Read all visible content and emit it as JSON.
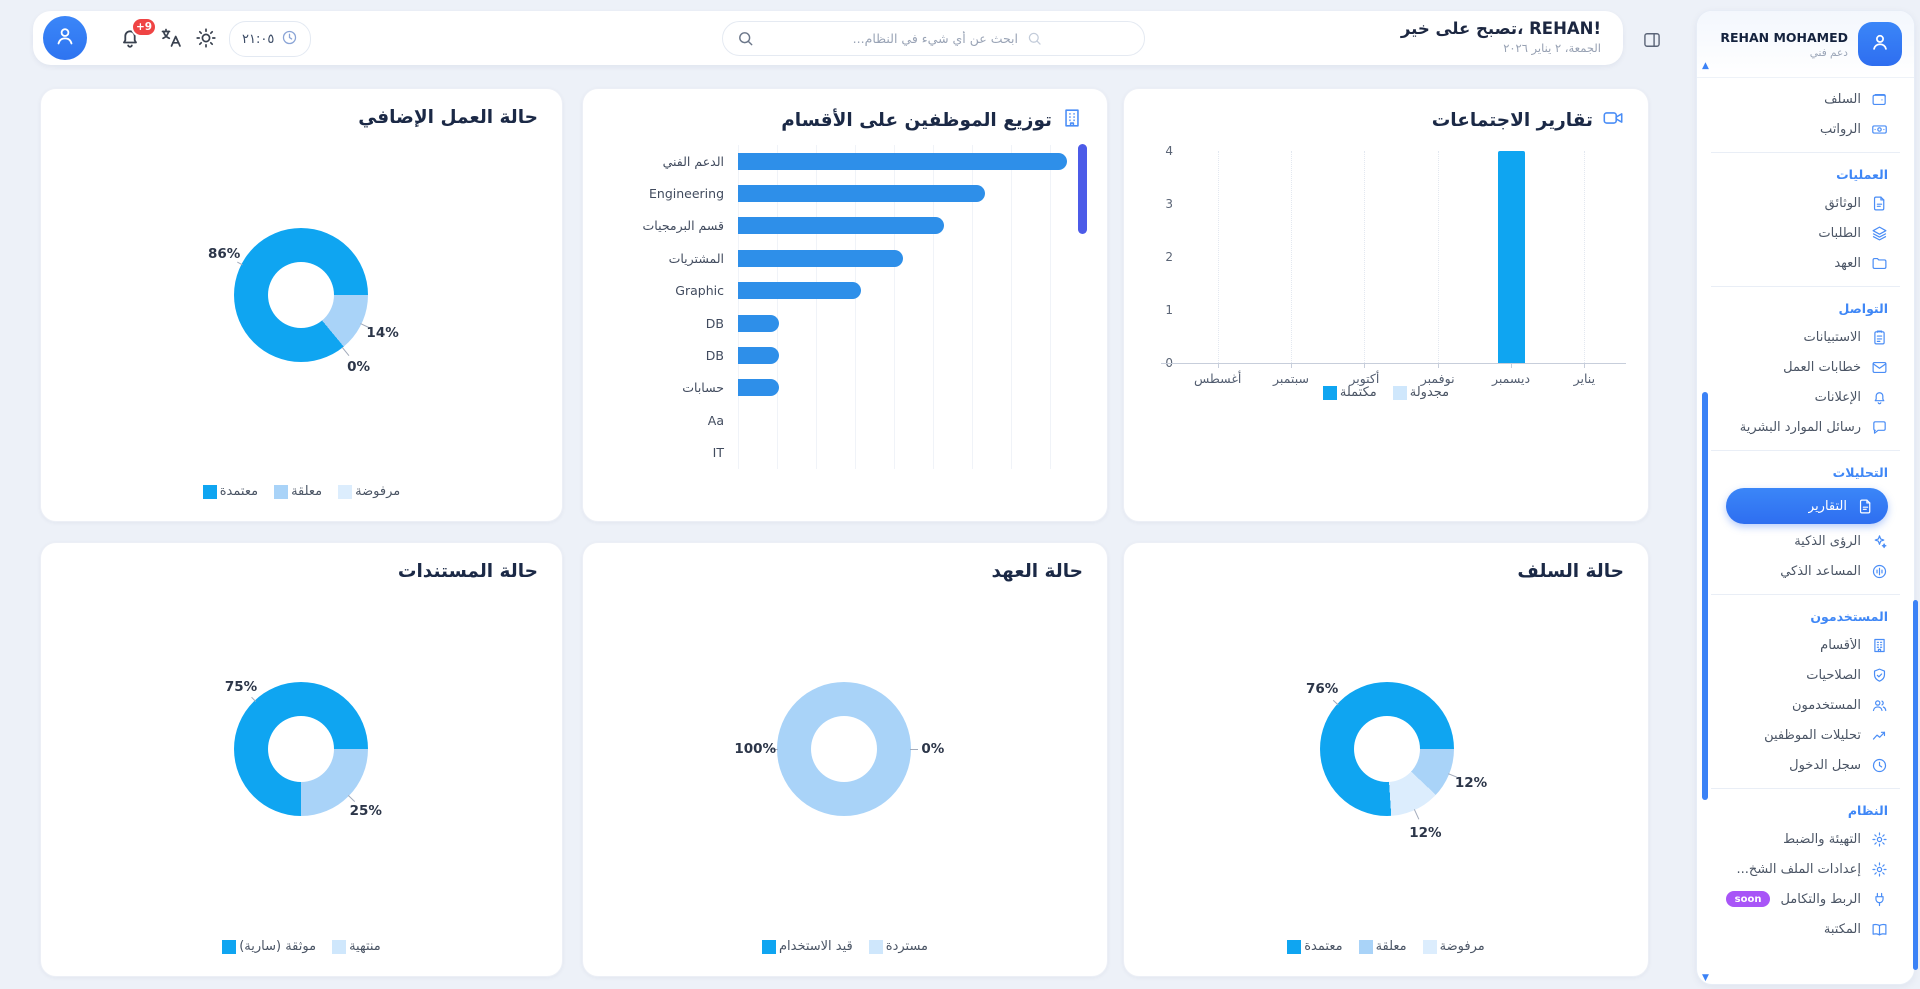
{
  "topbar": {
    "greeting": "تصبح على خير، REHAN!",
    "date": "الجمعة، ٢ يناير ٢٠٢٦",
    "search_placeholder": "ابحث عن أي شيء في النظام...",
    "time": "٢١:٠٥",
    "notifications_badge": "+9",
    "icons": [
      "user-avatar-icon",
      "bell-icon",
      "translate-icon",
      "sun-icon",
      "clock-icon",
      "search-icon",
      "panel-toggle-icon"
    ]
  },
  "sidebar": {
    "user": {
      "name": "REHAN MOHAMED",
      "role": "دعم فني"
    },
    "sections": [
      {
        "header": "",
        "items": [
          {
            "label": "السلف",
            "icon": "wallet-icon"
          },
          {
            "label": "الرواتب",
            "icon": "banknote-icon"
          }
        ]
      },
      {
        "header": "العمليات",
        "items": [
          {
            "label": "الوثائق",
            "icon": "document-icon"
          },
          {
            "label": "الطلبات",
            "icon": "layers-icon"
          },
          {
            "label": "العهد",
            "icon": "folder-icon"
          }
        ]
      },
      {
        "header": "التواصل",
        "items": [
          {
            "label": "الاستبيانات",
            "icon": "clipboard-icon"
          },
          {
            "label": "خطابات العمل",
            "icon": "mail-icon"
          },
          {
            "label": "الإعلانات",
            "icon": "bell-icon"
          },
          {
            "label": "رسائل الموارد البشرية",
            "icon": "chat-icon"
          }
        ]
      },
      {
        "header": "التحليلات",
        "items": [
          {
            "label": "التقارير",
            "icon": "report-icon",
            "active": true
          },
          {
            "label": "الرؤى الذكية",
            "icon": "sparkles-icon"
          },
          {
            "label": "المساعد الذكي",
            "icon": "assistant-icon"
          }
        ]
      },
      {
        "header": "المستخدمون",
        "items": [
          {
            "label": "الأقسام",
            "icon": "building-icon"
          },
          {
            "label": "الصلاحيات",
            "icon": "shield-icon"
          },
          {
            "label": "المستخدمون",
            "icon": "users-icon"
          },
          {
            "label": "تحليلات الموظفين",
            "icon": "trend-icon"
          },
          {
            "label": "سجل الدخول",
            "icon": "clock-icon"
          }
        ]
      },
      {
        "header": "النظام",
        "items": [
          {
            "label": "التهيئة والضبط",
            "icon": "gear-icon"
          },
          {
            "label": "إعدادات الملف الشخ...",
            "icon": "gear-icon"
          },
          {
            "label": "الربط والتكامل",
            "icon": "plug-icon",
            "badge": "soon"
          },
          {
            "label": "المكتبة",
            "icon": "book-icon"
          }
        ]
      }
    ]
  },
  "cards": [
    {
      "title": "حالة العمل الإضافي"
    },
    {
      "title": "توزيع الموظفين على الأقسام",
      "icon": "building-icon"
    },
    {
      "title": "تقارير الاجتماعات",
      "icon": "video-icon"
    },
    {
      "title": "حالة المستندات"
    },
    {
      "title": "حالة العهد"
    },
    {
      "title": "حالة السلف"
    }
  ],
  "colors": {
    "primary": "#0FA5F1",
    "secondary": "#A9D3F8",
    "tertiary": "#DCEDFD",
    "pale_legend": "#CFE7FC",
    "bar": "#2E8FE9",
    "accent": "#3B82F6",
    "indigo_thumb": "#4C5BE8",
    "badge_red": "#EF4444",
    "soon_purple": "#A855F7"
  },
  "chart_data": [
    {
      "id": "overtime",
      "type": "pie",
      "title": "حالة العمل الإضافي",
      "labels": [
        "معتمدة",
        "معلقة",
        "مرفوضة"
      ],
      "values": [
        86,
        14,
        0
      ],
      "colors": [
        "#0FA5F1",
        "#A9D3F8",
        "#DCEDFD"
      ],
      "label_points": [
        {
          "t": "86%",
          "x": 18,
          "y": 33
        },
        {
          "t": "14%",
          "x": 84,
          "y": 66
        },
        {
          "t": "0%",
          "x": 74,
          "y": 80
        }
      ],
      "legend": [
        {
          "label": "معتمدة",
          "color": "#0FA5F1"
        },
        {
          "label": "معلقة",
          "color": "#A9D3F8"
        },
        {
          "label": "مرفوضة",
          "color": "#DCEDFD"
        }
      ]
    },
    {
      "id": "departments",
      "type": "bar",
      "title": "توزيع الموظفين على الأقسام",
      "orientation": "horizontal",
      "categories": [
        "الدعم الفني",
        "Engineering",
        "قسم البرمجيات",
        "المشتريات",
        "Graphic",
        "DB",
        "DB",
        "حسابات",
        "Aa",
        "IT"
      ],
      "values": [
        8,
        6,
        5,
        4,
        3,
        1,
        1,
        1,
        0,
        0
      ],
      "xmax": 8
    },
    {
      "id": "meetings",
      "type": "bar",
      "title": "تقارير الاجتماعات",
      "categories": [
        "أغسطس",
        "سبتمبر",
        "أكتوبر",
        "نوفمبر",
        "ديسمبر",
        "يناير"
      ],
      "series": [
        {
          "name": "مكتملة",
          "color": "#0FA5F1",
          "values": [
            0,
            0,
            0,
            0,
            4,
            0
          ]
        },
        {
          "name": "مجدولة",
          "color": "#CFE7FC",
          "values": [
            0,
            0,
            0,
            0,
            0,
            0
          ]
        }
      ],
      "ylim": [
        0,
        4
      ],
      "yticks": [
        0,
        1,
        2,
        3,
        4
      ],
      "legend": [
        {
          "label": "مكتملة",
          "color": "#0FA5F1"
        },
        {
          "label": "مجدولة",
          "color": "#CFE7FC"
        }
      ]
    },
    {
      "id": "documents",
      "type": "pie",
      "title": "حالة المستندات",
      "labels": [
        "موثقة (سارية)",
        "منتهية"
      ],
      "values": [
        75,
        25
      ],
      "colors": [
        "#0FA5F1",
        "#A9D3F8"
      ],
      "label_points": [
        {
          "t": "75%",
          "x": 25,
          "y": 24
        },
        {
          "t": "25%",
          "x": 77,
          "y": 76
        }
      ],
      "legend": [
        {
          "label": "موثقة (سارية)",
          "color": "#0FA5F1"
        },
        {
          "label": "منتهية",
          "color": "#CFE7FC"
        }
      ]
    },
    {
      "id": "custody",
      "type": "pie",
      "title": "حالة العهد",
      "labels": [
        "قيد الاستخدام",
        "مستردة"
      ],
      "values": [
        0,
        100
      ],
      "colors": [
        "#0FA5F1",
        "#A9D3F8"
      ],
      "label_points": [
        {
          "t": "0%",
          "x": 87,
          "y": 50
        },
        {
          "t": "100%",
          "x": 13,
          "y": 50
        }
      ],
      "legend": [
        {
          "label": "قيد الاستخدام",
          "color": "#0FA5F1"
        },
        {
          "label": "مستردة",
          "color": "#CFE7FC"
        }
      ]
    },
    {
      "id": "advances",
      "type": "pie",
      "title": "حالة السلف",
      "labels": [
        "معتمدة",
        "معلقة",
        "مرفوضة"
      ],
      "values": [
        76,
        12,
        12
      ],
      "colors": [
        "#0FA5F1",
        "#A9D3F8",
        "#DCEDFD"
      ],
      "label_points": [
        {
          "t": "76%",
          "x": 23,
          "y": 25
        },
        {
          "t": "12%",
          "x": 85,
          "y": 64
        },
        {
          "t": "12%",
          "x": 66,
          "y": 85
        }
      ],
      "legend": [
        {
          "label": "معتمدة",
          "color": "#0FA5F1"
        },
        {
          "label": "معلقة",
          "color": "#A9D3F8"
        },
        {
          "label": "مرفوضة",
          "color": "#DCEDFD"
        }
      ]
    }
  ]
}
